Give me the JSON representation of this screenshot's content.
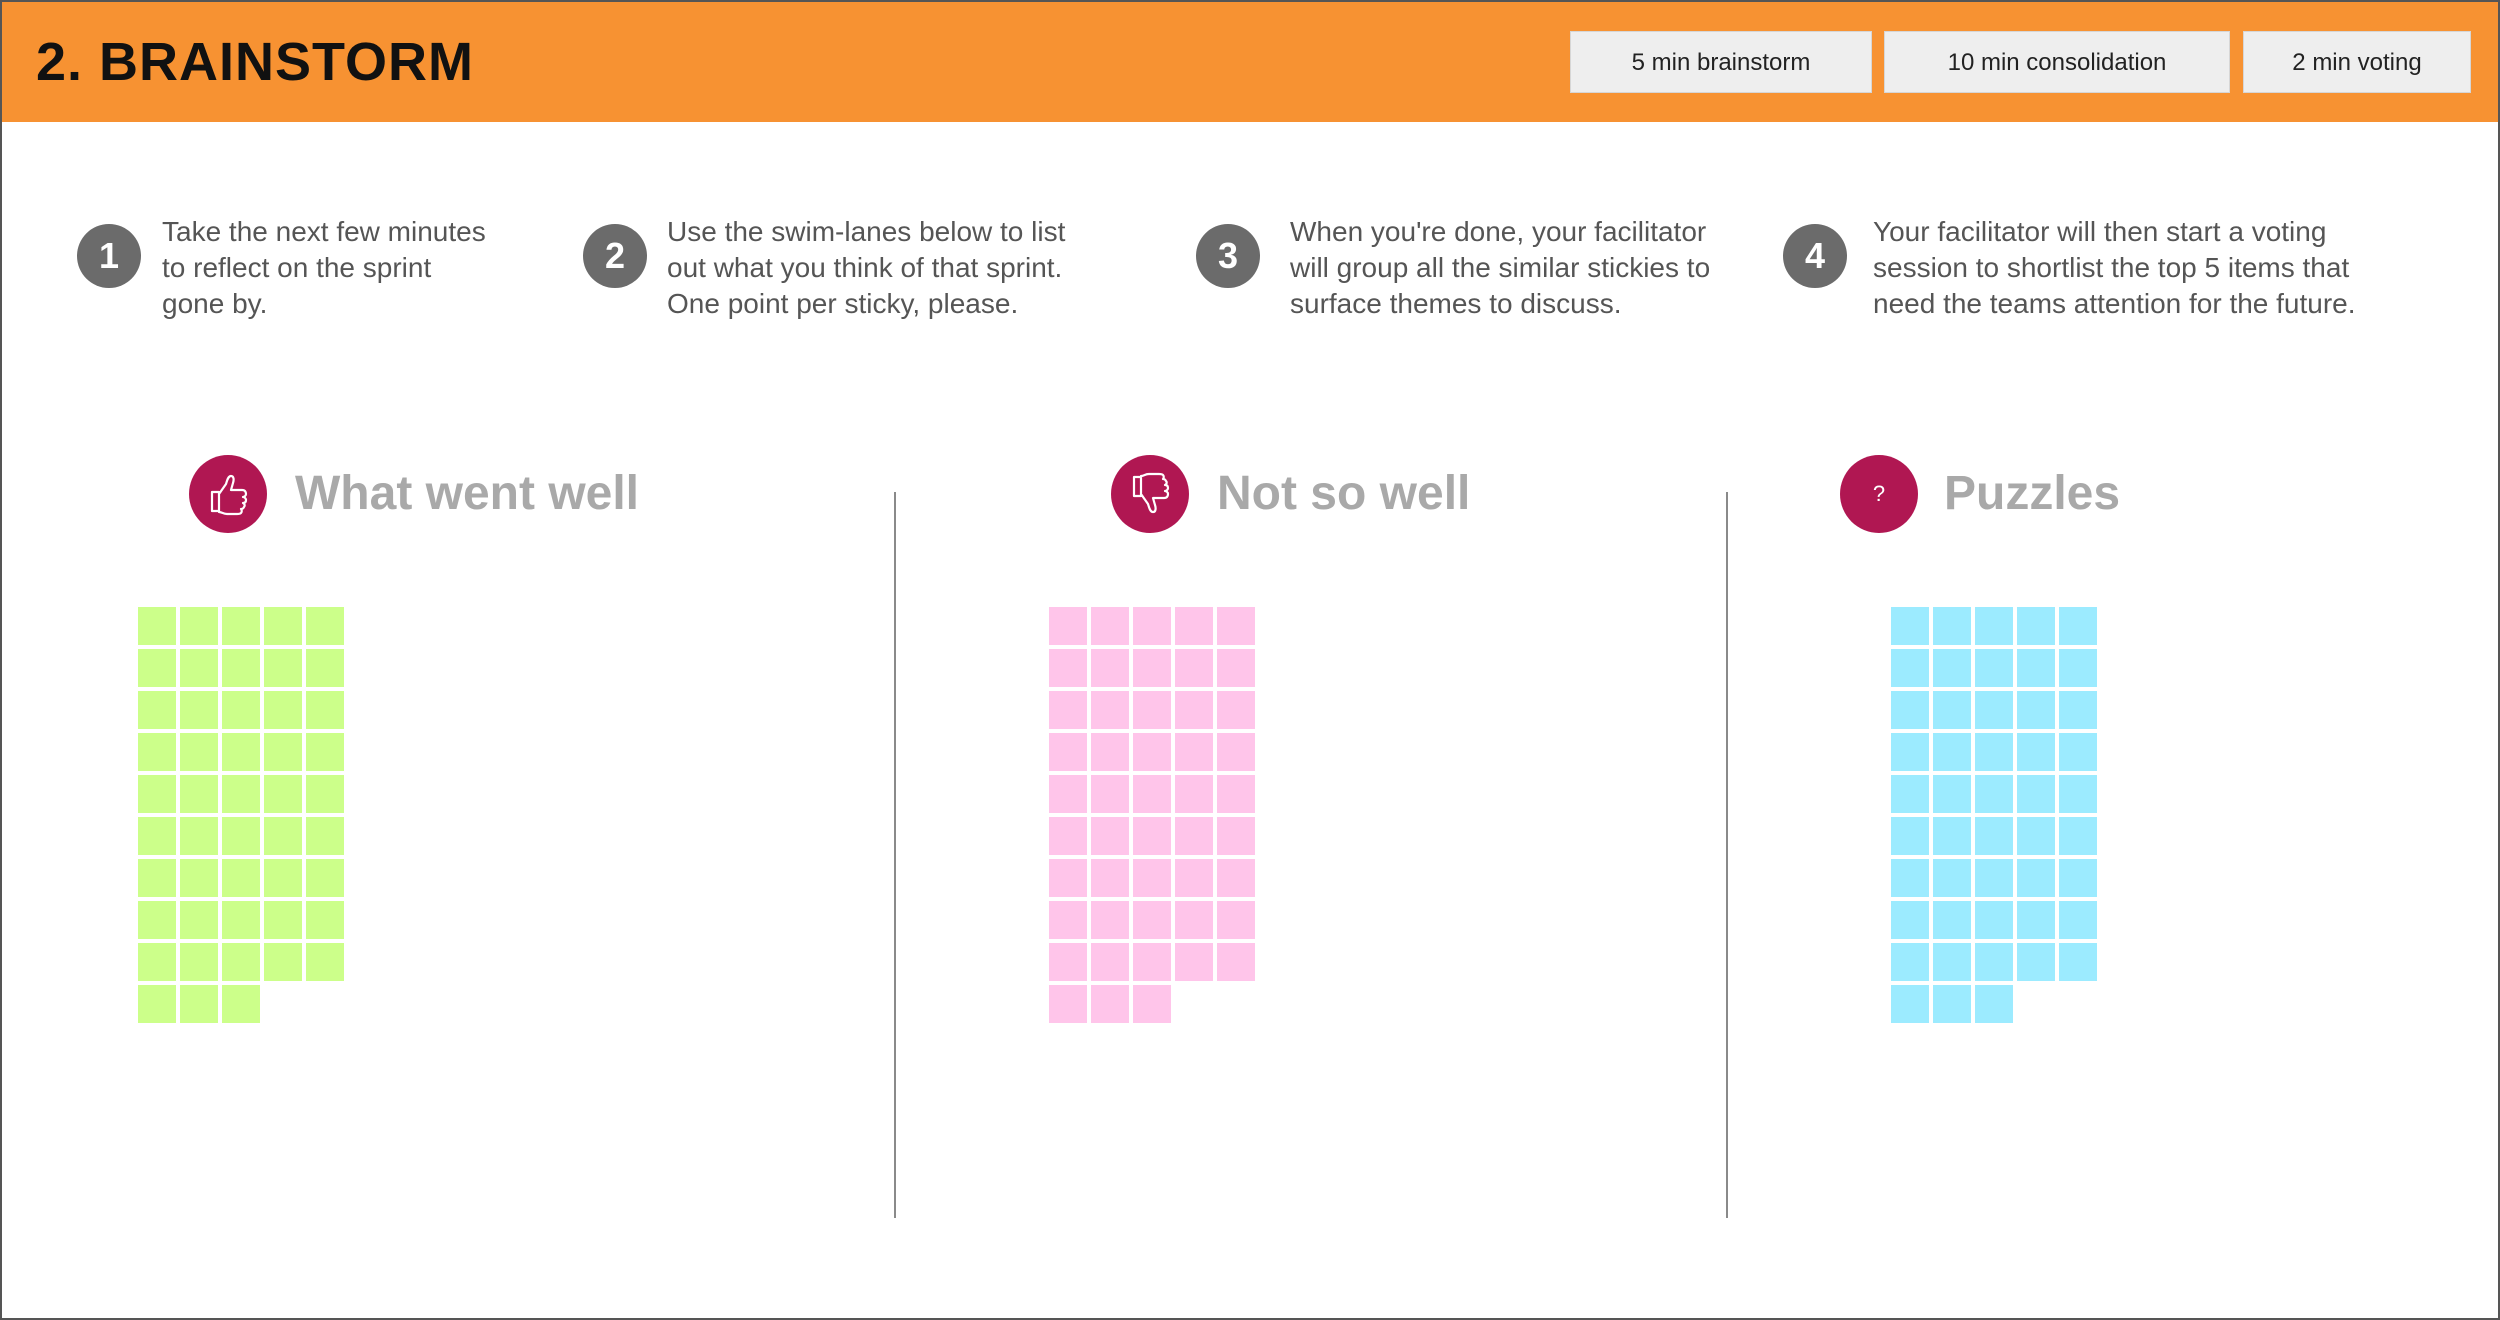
{
  "header": {
    "title": "2. BRAINSTORM",
    "timers": [
      "5 min brainstorm",
      "10 min consolidation",
      "2 min voting"
    ],
    "color": "#f79232"
  },
  "steps": [
    {
      "number": "1",
      "text": "Take the next few minutes\nto reflect on the sprint\ngone by."
    },
    {
      "number": "2",
      "text": "Use the swim-lanes below to  list\nout what you think of that sprint.\nOne point per sticky, please."
    },
    {
      "number": "3",
      "text": "When you're done, your facilitator\nwill group all the similar stickies to\nsurface themes to discuss."
    },
    {
      "number": "4",
      "text": "Your facilitator will then start a voting\nsession to shortlist the top 5 items that\nneed the teams attention for the future."
    }
  ],
  "lanes": [
    {
      "title": "What went well",
      "icon": "thumbs-up-icon",
      "sticky_color": "#ccff8a",
      "sticky_count": 48
    },
    {
      "title": "Not so well",
      "icon": "thumbs-down-icon",
      "sticky_color": "#ffc5ea",
      "sticky_count": 48
    },
    {
      "title": "Puzzles",
      "icon": "question-mark-icon",
      "icon_text": "?",
      "sticky_color": "#9cebff",
      "sticky_count": 48
    }
  ],
  "colors": {
    "accent": "#b01752",
    "step_badge": "#6b6b6b"
  }
}
